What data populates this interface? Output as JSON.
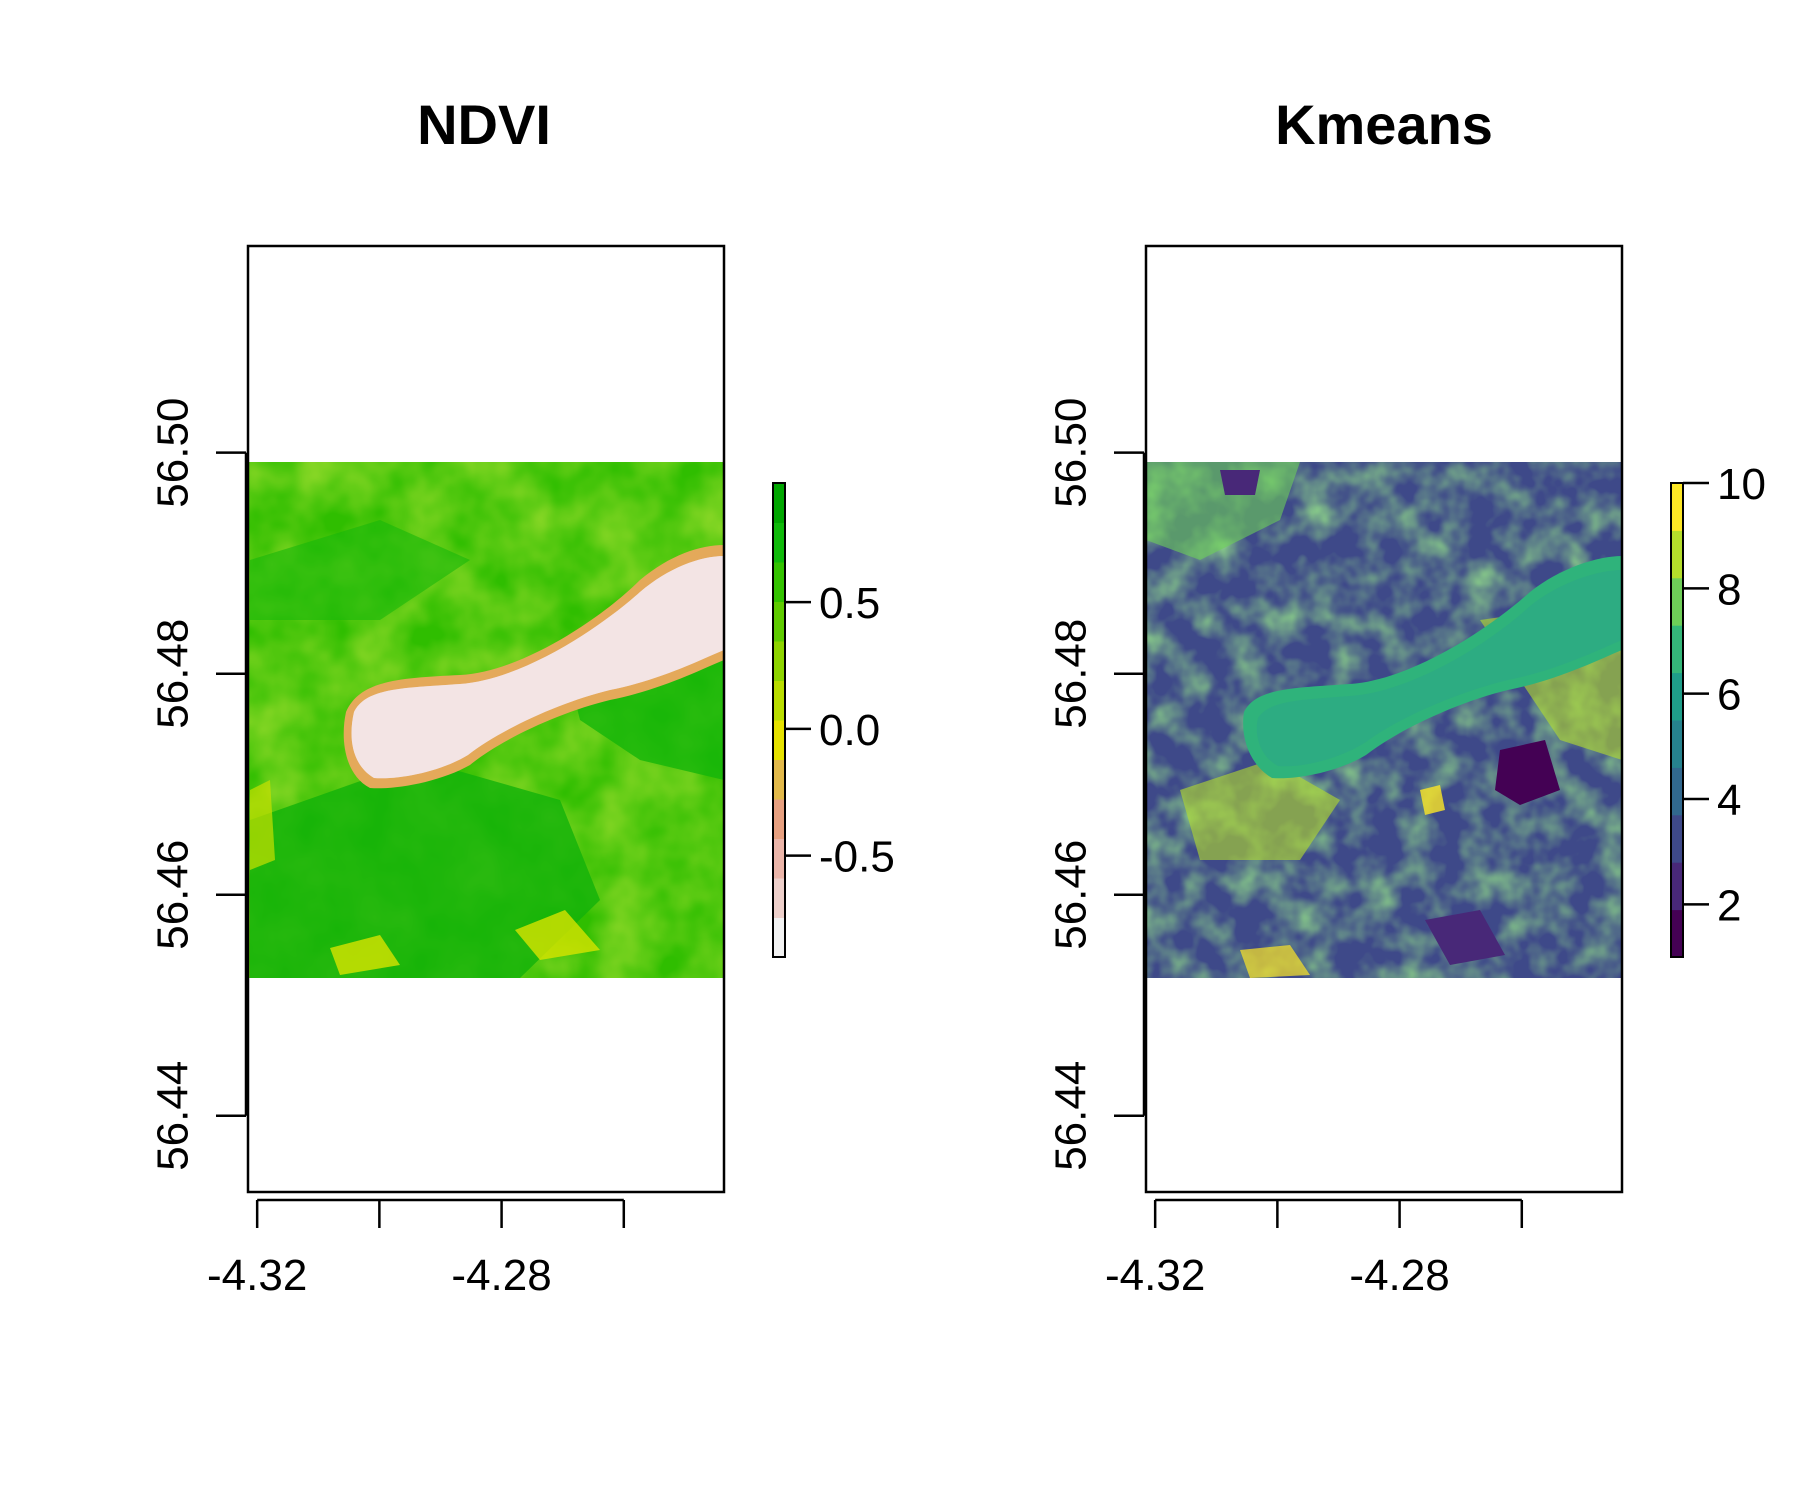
{
  "chart_data": [
    {
      "type": "heatmap",
      "title": "NDVI",
      "xlabel": "",
      "ylabel": "",
      "xlim": [
        -4.3215,
        -4.2436
      ],
      "ylim": [
        56.4331,
        56.5187
      ],
      "raster_extent": {
        "x": [
          -4.3215,
          -4.2436
        ],
        "y": [
          56.4544,
          56.5009
        ]
      },
      "x_ticks": [
        -4.32,
        -4.3,
        -4.28,
        -4.26
      ],
      "x_tick_labels": [
        "-4.32",
        "-4.28"
      ],
      "y_ticks": [
        56.44,
        56.46,
        56.48,
        56.5
      ],
      "y_tick_labels": [
        "56.44",
        "56.46",
        "56.48",
        "56.50"
      ],
      "legend": {
        "placement": "right",
        "range": [
          -0.9,
          0.97
        ],
        "ticks": [
          -0.5,
          0.0,
          0.5
        ],
        "tick_labels": [
          "-0.5",
          "0.0",
          "0.5"
        ],
        "colors": [
          "#f2f2f2",
          "#eed0cb",
          "#ebb5a9",
          "#e7a080",
          "#e2b94a",
          "#e6e200",
          "#b9dd00",
          "#8ed400",
          "#5fcb00",
          "#33c200",
          "#0fb90a",
          "#00a600"
        ]
      }
    },
    {
      "type": "heatmap",
      "title": "Kmeans",
      "xlabel": "",
      "ylabel": "",
      "xlim": [
        -4.3215,
        -4.2436
      ],
      "ylim": [
        56.4331,
        56.5187
      ],
      "raster_extent": {
        "x": [
          -4.3215,
          -4.2436
        ],
        "y": [
          56.4544,
          56.5009
        ]
      },
      "x_ticks": [
        -4.32,
        -4.3,
        -4.28,
        -4.26
      ],
      "x_tick_labels": [
        "-4.32",
        "-4.28"
      ],
      "y_ticks": [
        56.44,
        56.46,
        56.48,
        56.5
      ],
      "y_tick_labels": [
        "56.44",
        "56.46",
        "56.48",
        "56.50"
      ],
      "legend": {
        "placement": "right",
        "range": [
          1,
          10
        ],
        "ticks": [
          2,
          4,
          6,
          8,
          10
        ],
        "tick_labels": [
          "2",
          "4",
          "6",
          "8",
          "10"
        ],
        "colors": [
          "#440154",
          "#482878",
          "#3e4989",
          "#31688e",
          "#26828e",
          "#1f9e89",
          "#35b779",
          "#6ece58",
          "#b5de2b",
          "#fde725"
        ]
      }
    }
  ]
}
